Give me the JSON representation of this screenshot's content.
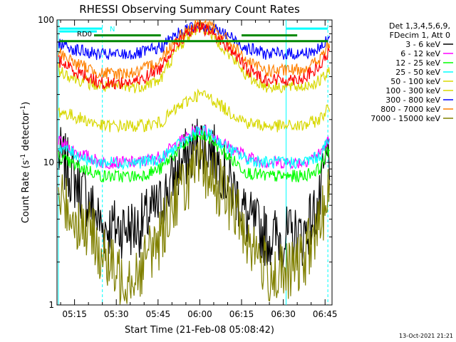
{
  "chart_data": {
    "type": "line",
    "title": "RHESSI Observing Summary Count Rates",
    "xlabel": "Start Time (21-Feb-08 05:08:42)",
    "ylabel_main": "Count Rate (s",
    "ylabel_sup1": "-1",
    "ylabel_mid": " detector",
    "ylabel_sup2": "-1",
    "ylabel_end": ")",
    "yscale": "log",
    "ylim": [
      1,
      100
    ],
    "y_ticks": [
      {
        "value": 1,
        "label": "1"
      },
      {
        "value": 10,
        "label": "10"
      },
      {
        "value": 100,
        "label": "100"
      }
    ],
    "xlim_min": [
      8.7,
      107.5
    ],
    "x_ticks": [
      {
        "value": 15,
        "label": "05:15"
      },
      {
        "value": 30,
        "label": "05:30"
      },
      {
        "value": 45,
        "label": "05:45"
      },
      {
        "value": 60,
        "label": "06:00"
      },
      {
        "value": 75,
        "label": "06:15"
      },
      {
        "value": 90,
        "label": "06:30"
      },
      {
        "value": 105,
        "label": "06:45"
      }
    ],
    "legend_header": [
      "Det 1,3,4,5,6,9,",
      "FDecim 1, Att 0"
    ],
    "legend_position": "right",
    "timestamp": "13-Oct-2021 21:21",
    "annotations": [
      {
        "text": "RD0",
        "color": "#000000"
      },
      {
        "text": "N",
        "color": "#00ffff"
      }
    ],
    "status_bars": [
      {
        "name": "N",
        "color": "#00ffff",
        "level": 87,
        "segments": [
          [
            9.5,
            25
          ],
          [
            91,
            106
          ]
        ]
      },
      {
        "name": "RD0",
        "color": "#00ffff",
        "level": 83,
        "segments": [
          [
            9.5,
            23
          ]
        ]
      },
      {
        "name": "Att",
        "color": "#008800",
        "level": 71,
        "segments": [
          [
            9.5,
            106
          ]
        ]
      },
      {
        "name": "Decim",
        "color": "#008800",
        "level": 78,
        "segments": [
          [
            22,
            46
          ],
          [
            75,
            95
          ]
        ]
      }
    ],
    "vlines": [
      {
        "x": 9.2,
        "color": "#00ffff",
        "style": "solid"
      },
      {
        "x": 25,
        "color": "#00ffff",
        "style": "dashed"
      },
      {
        "x": 91,
        "color": "#00ffff",
        "style": "solid"
      },
      {
        "x": 106,
        "color": "#00ffff",
        "style": "dashed"
      }
    ],
    "x_samples": [
      9,
      15,
      22,
      25,
      30,
      38,
      46,
      52,
      58,
      60,
      63,
      70,
      77,
      84,
      90,
      97,
      103,
      106
    ],
    "series": [
      {
        "name": "3 - 6 keV",
        "color": "#000000",
        "values": [
          11.5,
          7.5,
          4.5,
          3.5,
          3.5,
          3.5,
          5,
          8.5,
          13,
          14,
          13,
          7.5,
          4,
          3,
          3,
          3,
          5,
          11
        ]
      },
      {
        "name": "6 - 12 keV",
        "color": "#ff00ff",
        "values": [
          14,
          12,
          10.5,
          10,
          10,
          10,
          11,
          13.5,
          16.5,
          17,
          16.5,
          13,
          11,
          10,
          10,
          10,
          11.5,
          14
        ]
      },
      {
        "name": "12 - 25 keV",
        "color": "#00ff00",
        "values": [
          11,
          9.5,
          8.5,
          8,
          8,
          8,
          9,
          12,
          15,
          15.5,
          15,
          11,
          8.5,
          8,
          8,
          8,
          9,
          12
        ]
      },
      {
        "name": "25 - 50 keV",
        "color": "#00ffff",
        "values": [
          13,
          11.5,
          10,
          10,
          10,
          10,
          10.5,
          13,
          16,
          16.5,
          16,
          12.5,
          10.5,
          10,
          10,
          10,
          11,
          14
        ]
      },
      {
        "name": "50 - 100 keV",
        "color": "#d8d800",
        "values": [
          23,
          21,
          19,
          18,
          18,
          18,
          19,
          24,
          29,
          30,
          29,
          23,
          19,
          18,
          18,
          18,
          20,
          24
        ]
      },
      {
        "name": "100 - 300 keV",
        "color": "#d8d800",
        "values": [
          45,
          39,
          35,
          34,
          34,
          34,
          38,
          62,
          85,
          90,
          85,
          58,
          40,
          34,
          34,
          34,
          37,
          42
        ]
      },
      {
        "name": "300 - 800 keV",
        "color": "#0000ff",
        "values": [
          70,
          62,
          58,
          57,
          57,
          58,
          64,
          80,
          90,
          92,
          90,
          78,
          63,
          58,
          58,
          58,
          62,
          72
        ]
      },
      {
        "name": "800 - 7000 keV",
        "color": "#ff8000",
        "values": [
          60,
          50,
          44,
          42,
          42,
          43,
          52,
          75,
          92,
          95,
          92,
          72,
          50,
          44,
          44,
          45,
          52,
          65
        ]
      },
      {
        "name": "7000 - 15000 keV",
        "color": "#808000",
        "values": [
          6,
          4,
          3,
          2.2,
          1.6,
          1.7,
          3,
          6,
          8.5,
          9,
          8.5,
          5.5,
          3,
          1.7,
          1.6,
          2,
          3.5,
          6
        ]
      }
    ],
    "extra_trace": {
      "name": "",
      "color": "#ff0000",
      "values": [
        52,
        44,
        38,
        36,
        36,
        37,
        46,
        70,
        85,
        88,
        85,
        65,
        45,
        38,
        38,
        39,
        46,
        58
      ]
    }
  }
}
